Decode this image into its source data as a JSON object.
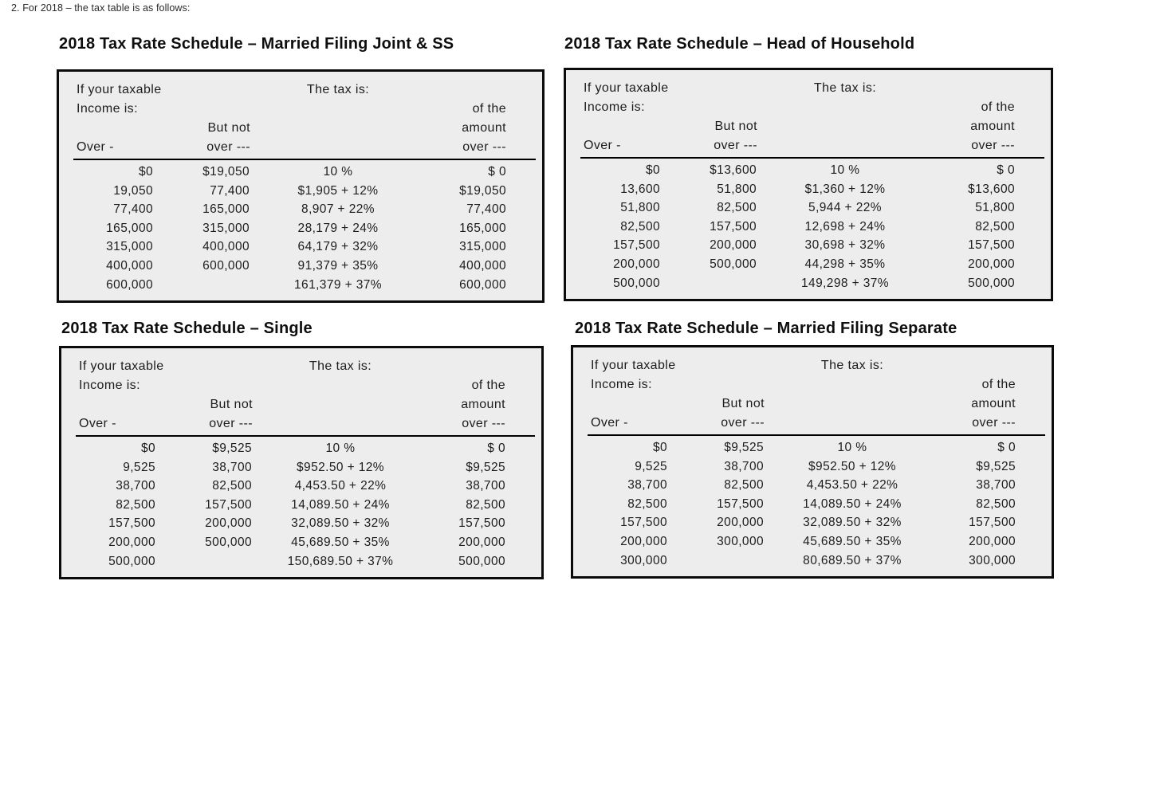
{
  "page": {
    "note": "2. For 2018 – the tax table is as follows:"
  },
  "shared": {
    "header": {
      "income_line1": "If your taxable",
      "income_line2": "Income is:",
      "tax_is": "The tax is:",
      "of_the": "of the",
      "amount": "amount",
      "but_not": "But not",
      "over_label": "Over -",
      "over_dots": "over ---"
    }
  },
  "tables": [
    {
      "title": "2018 Tax Rate Schedule – Married Filing Joint & SS",
      "rows": [
        [
          "$0",
          "$19,050",
          "10 %",
          "$ 0"
        ],
        [
          "19,050",
          "77,400",
          "$1,905 + 12%",
          "$19,050"
        ],
        [
          "77,400",
          "165,000",
          "8,907 + 22%",
          "77,400"
        ],
        [
          "165,000",
          "315,000",
          "28,179 + 24%",
          "165,000"
        ],
        [
          "315,000",
          "400,000",
          "64,179 + 32%",
          "315,000"
        ],
        [
          "400,000",
          "600,000",
          "91,379 + 35%",
          "400,000"
        ],
        [
          "600,000",
          "",
          "161,379 + 37%",
          "600,000"
        ]
      ]
    },
    {
      "title": "2018 Tax Rate Schedule – Head of Household",
      "rows": [
        [
          "$0",
          "$13,600",
          "10 %",
          "$ 0"
        ],
        [
          "13,600",
          "51,800",
          "$1,360 + 12%",
          "$13,600"
        ],
        [
          "51,800",
          "82,500",
          "5,944 + 22%",
          "51,800"
        ],
        [
          "82,500",
          "157,500",
          "12,698 + 24%",
          "82,500"
        ],
        [
          "157,500",
          "200,000",
          "30,698 + 32%",
          "157,500"
        ],
        [
          "200,000",
          "500,000",
          "44,298 + 35%",
          "200,000"
        ],
        [
          "500,000",
          "",
          "149,298 + 37%",
          "500,000"
        ]
      ]
    },
    {
      "title": "2018 Tax Rate Schedule – Single",
      "rows": [
        [
          "$0",
          "$9,525",
          "10 %",
          "$ 0"
        ],
        [
          "9,525",
          "38,700",
          "$952.50 + 12%",
          "$9,525"
        ],
        [
          "38,700",
          "82,500",
          "4,453.50 + 22%",
          "38,700"
        ],
        [
          "82,500",
          "157,500",
          "14,089.50 + 24%",
          "82,500"
        ],
        [
          "157,500",
          "200,000",
          "32,089.50 + 32%",
          "157,500"
        ],
        [
          "200,000",
          "500,000",
          "45,689.50 + 35%",
          "200,000"
        ],
        [
          "500,000",
          "",
          "150,689.50 + 37%",
          "500,000"
        ]
      ]
    },
    {
      "title": "2018 Tax Rate Schedule – Married Filing Separate",
      "rows": [
        [
          "$0",
          "$9,525",
          "10 %",
          "$ 0"
        ],
        [
          "9,525",
          "38,700",
          "$952.50 + 12%",
          "$9,525"
        ],
        [
          "38,700",
          "82,500",
          "4,453.50 + 22%",
          "38,700"
        ],
        [
          "82,500",
          "157,500",
          "14,089.50 + 24%",
          "82,500"
        ],
        [
          "157,500",
          "200,000",
          "32,089.50 + 32%",
          "157,500"
        ],
        [
          "200,000",
          "300,000",
          "45,689.50 + 35%",
          "200,000"
        ],
        [
          "300,000",
          "",
          "80,689.50 + 37%",
          "300,000"
        ]
      ]
    }
  ],
  "colors": {
    "table_background": "#ededed",
    "table_border": "#0b0b0b",
    "text": "#1d1d1d"
  }
}
